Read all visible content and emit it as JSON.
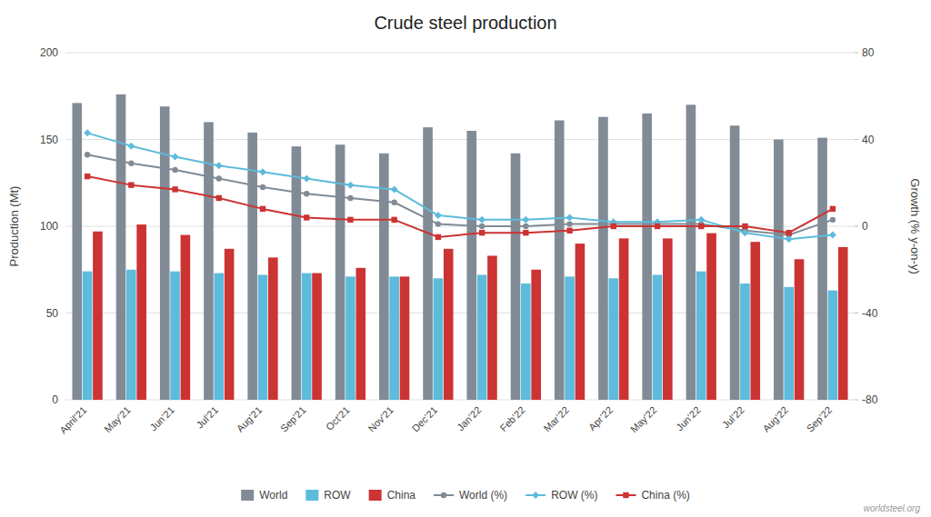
{
  "chart_data": {
    "type": "bar",
    "title": "Crude steel production",
    "ylabel": "Production (Mt)",
    "y2label": "Growth (% y‑on‑y)",
    "annotations": [
      "worldsteel.org"
    ],
    "categories": [
      "April’21",
      "May’21",
      "Jun’21",
      "Jul’21",
      "Aug’21",
      "Sep’21",
      "Oct’21",
      "Nov’21",
      "Dec’21",
      "Jan’22",
      "Feb’22",
      "Mar’22",
      "Apr’22",
      "May’22",
      "Jun’22",
      "Jul’22",
      "Aug’22",
      "Sep’22"
    ],
    "series": [
      {
        "name": "World",
        "type": "bar",
        "color": "#808b96",
        "values": [
          171,
          176,
          169,
          160,
          154,
          146,
          147,
          142,
          157,
          155,
          142,
          161,
          163,
          165,
          170,
          158,
          150,
          151
        ]
      },
      {
        "name": "ROW",
        "type": "bar",
        "color": "#5dbbdb",
        "values": [
          74,
          75,
          74,
          73,
          72,
          73,
          71,
          71,
          70,
          72,
          67,
          71,
          70,
          72,
          74,
          67,
          65,
          63
        ]
      },
      {
        "name": "China",
        "type": "bar",
        "color": "#cc3333",
        "values": [
          97,
          101,
          95,
          87,
          82,
          73,
          76,
          71,
          87,
          83,
          75,
          90,
          93,
          93,
          96,
          91,
          81,
          88
        ]
      },
      {
        "name": "World (%)",
        "type": "line",
        "axis": "y2",
        "marker": "circle",
        "color": "#808b96",
        "values": [
          33,
          29,
          26,
          22,
          18,
          15,
          13,
          11,
          1,
          0,
          0,
          1,
          1,
          1,
          1,
          -2,
          -4,
          3
        ]
      },
      {
        "name": "ROW (%)",
        "type": "line",
        "axis": "y2",
        "marker": "diamond",
        "color": "#5dbbdb",
        "values": [
          43,
          37,
          32,
          28,
          25,
          22,
          19,
          17,
          5,
          3,
          3,
          4,
          2,
          2,
          3,
          -3,
          -6,
          -4
        ]
      },
      {
        "name": "China (%)",
        "type": "line",
        "axis": "y2",
        "marker": "square",
        "color": "#cc3333",
        "values": [
          23,
          19,
          17,
          13,
          8,
          4,
          3,
          3,
          -5,
          -3,
          -3,
          -2,
          0,
          0,
          0,
          0,
          -3,
          8
        ]
      }
    ],
    "ylim": [
      0,
      200
    ],
    "yticks": [
      0,
      50,
      100,
      150,
      200
    ],
    "y2lim": [
      -80,
      80
    ],
    "y2ticks": [
      -80,
      -40,
      0,
      40,
      80
    ],
    "grid": true,
    "legend": "bottom"
  }
}
